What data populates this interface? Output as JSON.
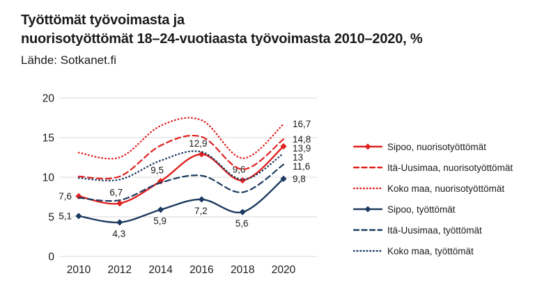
{
  "header": {
    "title_line1": "Työttömät työvoimasta ja",
    "title_line2": "nuorisotyöttömät 18–24-vuotiaasta työvoimasta 2010–2020, %",
    "source": "Lähde: Sotkanet.fi"
  },
  "colors": {
    "red": "#e0211f",
    "blue": "#1b3a5f",
    "grid": "#d9d9d9",
    "text": "#1a1a1a"
  },
  "chart_data": {
    "type": "line",
    "x": [
      2010,
      2012,
      2014,
      2016,
      2018,
      2020
    ],
    "x_tick_labels": [
      "2010",
      "2012",
      "2014",
      "2016",
      "2018",
      "2020"
    ],
    "y_ticks": [
      0,
      5,
      10,
      15,
      20
    ],
    "y_tick_labels": [
      "0",
      "5",
      "10",
      "15",
      "20"
    ],
    "ylim": [
      0,
      20
    ],
    "grid": true,
    "legend_position": "right",
    "series": [
      {
        "name": "Sipoo, nuorisotyöttömät",
        "color_key": "red",
        "style": "solid",
        "marker": "diamond",
        "values": [
          7.6,
          6.7,
          9.5,
          12.9,
          9.6,
          13.9
        ],
        "point_labels": [
          "7,6",
          "6,7",
          "9,5",
          "12,9",
          "9,6",
          ""
        ],
        "point_label_pos": [
          "left",
          "above",
          "above",
          "above",
          "above",
          "none"
        ],
        "end_label": "13,9"
      },
      {
        "name": "Itä-Uusimaa, nuorisotyöttömät",
        "color_key": "red",
        "style": "dashed",
        "marker": "none",
        "values": [
          10.1,
          10.1,
          14.0,
          15.1,
          11.0,
          14.8
        ],
        "point_labels": [],
        "point_label_pos": [],
        "end_label": "14,8"
      },
      {
        "name": "Koko maa, nuorisotyöttömät",
        "color_key": "red",
        "style": "dotted",
        "marker": "none",
        "values": [
          13.1,
          12.5,
          16.5,
          17.2,
          12.4,
          16.7
        ],
        "point_labels": [],
        "point_label_pos": [],
        "end_label": "16,7"
      },
      {
        "name": "Sipoo, työttömät",
        "color_key": "blue",
        "style": "solid",
        "marker": "diamond",
        "values": [
          5.1,
          4.3,
          5.9,
          7.2,
          5.6,
          9.8
        ],
        "point_labels": [
          "5,1",
          "4,3",
          "5,9",
          "7,2",
          "5,6",
          ""
        ],
        "point_label_pos": [
          "left",
          "below",
          "below",
          "below",
          "below",
          "none"
        ],
        "end_label": "9,8"
      },
      {
        "name": "Itä-Uusimaa, työttömät",
        "color_key": "blue",
        "style": "dashed",
        "marker": "none",
        "values": [
          7.4,
          7.1,
          9.3,
          10.2,
          8.1,
          11.6
        ],
        "point_labels": [],
        "point_label_pos": [],
        "end_label": "11,6"
      },
      {
        "name": "Koko maa, työttömät",
        "color_key": "blue",
        "style": "dotted",
        "marker": "none",
        "values": [
          9.9,
          9.7,
          12.1,
          13.2,
          9.7,
          13.0
        ],
        "point_labels": [],
        "point_label_pos": [],
        "end_label": "13"
      }
    ]
  }
}
